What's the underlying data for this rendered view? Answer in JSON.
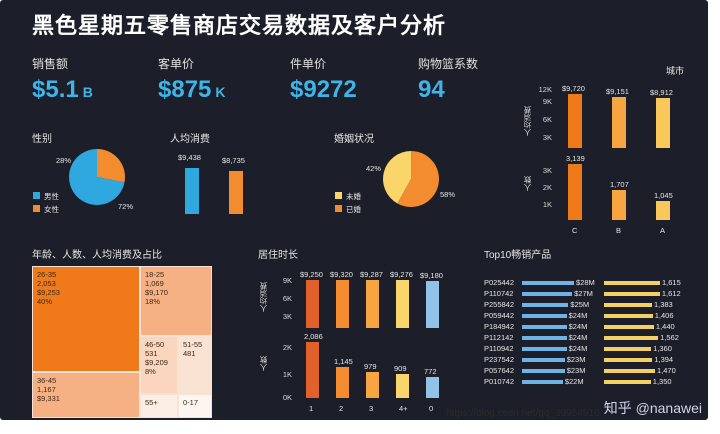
{
  "title": "黑色星期五零售商店交易数据及客户分析",
  "kpis": [
    {
      "label": "销售额",
      "value": "$5.1",
      "unit": "B"
    },
    {
      "label": "客单价",
      "value": "$875",
      "unit": "K"
    },
    {
      "label": "件单价",
      "value": "$9272",
      "unit": ""
    },
    {
      "label": "购物篮系数",
      "value": "94",
      "unit": ""
    }
  ],
  "gender": {
    "title": "性别",
    "legend": [
      {
        "label": "男性",
        "color": "#2fa8e0"
      },
      {
        "label": "女性",
        "color": "#f28c2e"
      }
    ],
    "pct_female": "28%",
    "pct_male": "72%",
    "values": [
      72,
      28
    ]
  },
  "avg_spend": {
    "title": "人均消费",
    "values": [
      "$9,438",
      "$8,735"
    ],
    "nums": [
      9438,
      8735
    ],
    "colors": [
      "#2fa8e0",
      "#f28c2e"
    ]
  },
  "marriage": {
    "title": "婚姻状况",
    "legend": [
      {
        "label": "未婚",
        "color": "#f9d56a"
      },
      {
        "label": "已婚",
        "color": "#f28c2e"
      }
    ],
    "pct_single": "42%",
    "pct_married": "58%",
    "values": [
      42,
      58
    ]
  },
  "city": {
    "title": "城市",
    "ylabel_top": "人均消费",
    "ylabel_bottom": "人数",
    "categories": [
      "C",
      "B",
      "A"
    ],
    "spend_labels": [
      "$9,720",
      "$9,151",
      "$8,912"
    ],
    "spend": [
      9720,
      9151,
      8912
    ],
    "count_labels": [
      "3,139",
      "1,707",
      "1,045"
    ],
    "count": [
      3139,
      1707,
      1045
    ],
    "ticks_top": [
      "12K",
      "9K",
      "6K",
      "3K"
    ],
    "ticks_bottom": [
      "3K",
      "2K",
      "1K"
    ],
    "colors": [
      "#f07a1a",
      "#f7a541",
      "#f9c85a"
    ]
  },
  "treemap": {
    "title": "年龄、人数、人均消费及占比",
    "cells": [
      {
        "age": "26-35",
        "count": "2,053",
        "spend": "$9,253",
        "pct": "40%"
      },
      {
        "age": "18-25",
        "count": "1,069",
        "spend": "$9,170",
        "pct": "18%"
      },
      {
        "age": "36-45",
        "count": "1,167",
        "spend": "$9,331",
        "pct": ""
      },
      {
        "age": "46-50",
        "count": "531",
        "spend": "$9,209",
        "pct": "8%"
      },
      {
        "age": "51-55",
        "count": "481",
        "spend": "",
        "pct": ""
      },
      {
        "age": "55+",
        "count": "",
        "spend": "",
        "pct": ""
      },
      {
        "age": "0-17",
        "count": "",
        "spend": "",
        "pct": ""
      }
    ]
  },
  "residence": {
    "title": "居住时长",
    "ylabel_top": "人均消费",
    "ylabel_bottom": "人数",
    "categories": [
      "1",
      "2",
      "3",
      "4+",
      "0"
    ],
    "spend_labels": [
      "$9,250",
      "$9,320",
      "$9,287",
      "$9,276",
      "$9,180"
    ],
    "spend": [
      9250,
      9320,
      9287,
      9276,
      9180
    ],
    "count_labels": [
      "2,086",
      "1,145",
      "979",
      "909",
      "772"
    ],
    "count": [
      2086,
      1145,
      979,
      909,
      772
    ],
    "ticks_top": [
      "9K",
      "6K",
      "3K"
    ],
    "ticks_bottom": [
      "2K",
      "1K",
      "0K"
    ],
    "colors": [
      "#e0622a",
      "#f28c2e",
      "#f7a541",
      "#f9d56a",
      "#8fc3e8"
    ]
  },
  "top10": {
    "title": "Top10畅销产品",
    "products": [
      {
        "id": "P025442",
        "sales": "$28M",
        "qty": "1,615",
        "s": 28,
        "q": 1615
      },
      {
        "id": "P110742",
        "sales": "$27M",
        "qty": "1,612",
        "s": 27,
        "q": 1612
      },
      {
        "id": "P255842",
        "sales": "$25M",
        "qty": "1,383",
        "s": 25,
        "q": 1383
      },
      {
        "id": "P059442",
        "sales": "$24M",
        "qty": "1,406",
        "s": 24,
        "q": 1406
      },
      {
        "id": "P184942",
        "sales": "$24M",
        "qty": "1,440",
        "s": 24,
        "q": 1440
      },
      {
        "id": "P112142",
        "sales": "$24M",
        "qty": "1,562",
        "s": 24,
        "q": 1562
      },
      {
        "id": "P110942",
        "sales": "$24M",
        "qty": "1,360",
        "s": 24,
        "q": 1360
      },
      {
        "id": "P237542",
        "sales": "$23M",
        "qty": "1,394",
        "s": 23,
        "q": 1394
      },
      {
        "id": "P057642",
        "sales": "$23M",
        "qty": "1,470",
        "s": 23,
        "q": 1470
      },
      {
        "id": "P010742",
        "sales": "$22M",
        "qty": "1,350",
        "s": 22,
        "q": 1350
      }
    ]
  },
  "watermark": "知乎 @nanawei",
  "footer_url": "https://blog.csdn.net/qq_39954916"
}
